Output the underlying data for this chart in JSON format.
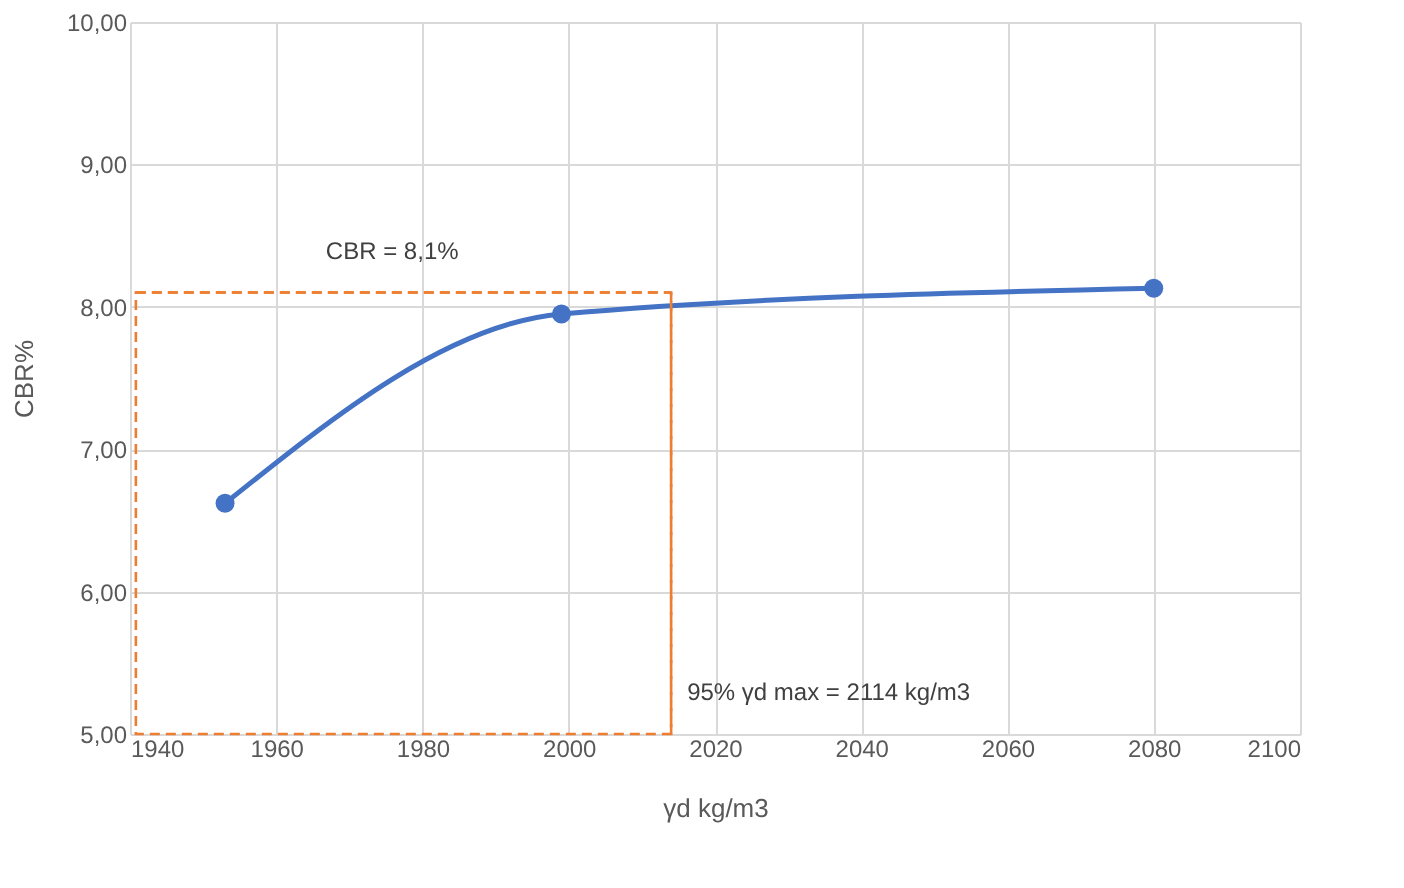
{
  "chart_data": {
    "type": "line",
    "xlabel": "γd kg/m3",
    "ylabel": "CBR%",
    "x": [
      1953,
      1999,
      2080
    ],
    "series": [
      {
        "color": "#4472c4",
        "values": [
          6.62,
          7.95,
          8.13
        ]
      }
    ],
    "xlim": [
      1940,
      2100
    ],
    "xticks": [
      1940,
      1960,
      1980,
      2000,
      2020,
      2040,
      2060,
      2080,
      2100
    ],
    "ylim": [
      5,
      10
    ],
    "yticks": [
      {
        "value": 5,
        "label": "5,00"
      },
      {
        "value": 6,
        "label": "6,00"
      },
      {
        "value": 7,
        "label": "7,00"
      },
      {
        "value": 8,
        "label": "8,00"
      },
      {
        "value": 9,
        "label": "9,00"
      },
      {
        "value": 10,
        "label": "10,00"
      }
    ],
    "ref_lines": [
      {
        "axis": "y",
        "value": 8.1,
        "label": "CBR = 8,1%",
        "color": "#ed7d31",
        "line_style": "dashed"
      },
      {
        "axis": "x",
        "value": 2014,
        "color": "#ed7d31",
        "line_style": "dashed"
      }
    ],
    "annotations": [
      "95% γd max = 2114 kg/m3"
    ],
    "grid": true,
    "marker": "circle",
    "line_style": "solid"
  }
}
